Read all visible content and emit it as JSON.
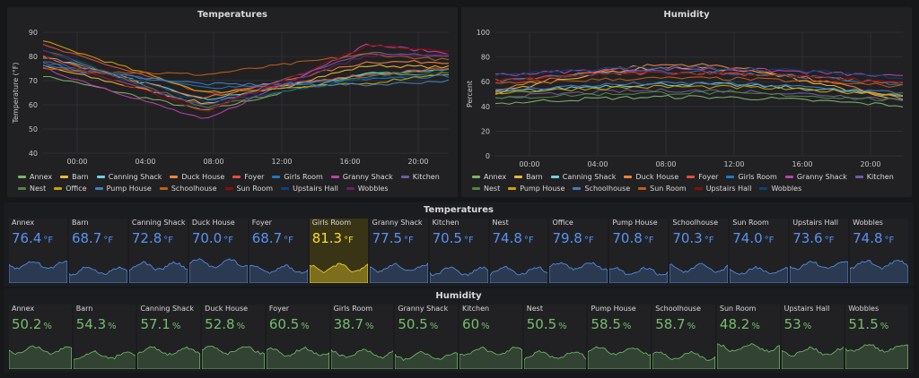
{
  "temp_chart": {
    "title": "Temperatures",
    "ylabel": "Temperature (°F)",
    "yticks": [
      "40",
      "50",
      "60",
      "70",
      "80",
      "90"
    ],
    "xticks": [
      "00:00",
      "04:00",
      "08:00",
      "12:00",
      "16:00",
      "20:00"
    ]
  },
  "hum_chart": {
    "title": "Humidity",
    "ylabel": "Percent",
    "yticks": [
      "0",
      "20",
      "40",
      "60",
      "80",
      "100"
    ],
    "xticks": [
      "00:00",
      "04:00",
      "08:00",
      "12:00",
      "16:00",
      "20:00"
    ]
  },
  "temp_legend": [
    {
      "name": "Annex",
      "color": "#7eb26d"
    },
    {
      "name": "Barn",
      "color": "#eab839"
    },
    {
      "name": "Canning Shack",
      "color": "#6ed0e0"
    },
    {
      "name": "Duck House",
      "color": "#ef843c"
    },
    {
      "name": "Foyer",
      "color": "#e24d42"
    },
    {
      "name": "Girls Room",
      "color": "#1f78c1"
    },
    {
      "name": "Granny Shack",
      "color": "#ba43a9"
    },
    {
      "name": "Kitchen",
      "color": "#705da0"
    },
    {
      "name": "Nest",
      "color": "#508642"
    },
    {
      "name": "Office",
      "color": "#cca300"
    },
    {
      "name": "Pump House",
      "color": "#447ebc"
    },
    {
      "name": "Schoolhouse",
      "color": "#c15c17"
    },
    {
      "name": "Sun Room",
      "color": "#890f02"
    },
    {
      "name": "Upstairs Hall",
      "color": "#0a437c"
    },
    {
      "name": "Wobbles",
      "color": "#6d1f62"
    }
  ],
  "hum_legend": [
    {
      "name": "Annex",
      "color": "#7eb26d"
    },
    {
      "name": "Barn",
      "color": "#eab839"
    },
    {
      "name": "Canning Shack",
      "color": "#6ed0e0"
    },
    {
      "name": "Duck House",
      "color": "#ef843c"
    },
    {
      "name": "Foyer",
      "color": "#e24d42"
    },
    {
      "name": "Girls Room",
      "color": "#1f78c1"
    },
    {
      "name": "Granny Shack",
      "color": "#ba43a9"
    },
    {
      "name": "Kitchen",
      "color": "#705da0"
    },
    {
      "name": "Nest",
      "color": "#508642"
    },
    {
      "name": "Pump House",
      "color": "#cca300"
    },
    {
      "name": "Schoolhouse",
      "color": "#447ebc"
    },
    {
      "name": "Sun Room",
      "color": "#c15c17"
    },
    {
      "name": "Upstairs Hall",
      "color": "#890f02"
    },
    {
      "name": "Wobbles",
      "color": "#0a437c"
    }
  ],
  "temp_stats": {
    "title": "Temperatures",
    "unit": "°F",
    "items": [
      {
        "name": "Annex",
        "value": "76.4"
      },
      {
        "name": "Barn",
        "value": "68.7"
      },
      {
        "name": "Canning Shack",
        "value": "72.8"
      },
      {
        "name": "Duck House",
        "value": "70.0"
      },
      {
        "name": "Foyer",
        "value": "68.7"
      },
      {
        "name": "Girls Room",
        "value": "81.3",
        "highlight": true
      },
      {
        "name": "Granny Shack",
        "value": "77.5"
      },
      {
        "name": "Kitchen",
        "value": "70.5"
      },
      {
        "name": "Nest",
        "value": "74.8"
      },
      {
        "name": "Office",
        "value": "79.8"
      },
      {
        "name": "Pump House",
        "value": "70.8"
      },
      {
        "name": "Schoolhouse",
        "value": "70.3"
      },
      {
        "name": "Sun Room",
        "value": "74.0"
      },
      {
        "name": "Upstairs Hall",
        "value": "73.6"
      },
      {
        "name": "Wobbles",
        "value": "74.8"
      }
    ]
  },
  "hum_stats": {
    "title": "Humidity",
    "unit": "%",
    "items": [
      {
        "name": "Annex",
        "value": "50.2"
      },
      {
        "name": "Barn",
        "value": "54.3"
      },
      {
        "name": "Canning Shack",
        "value": "57.1"
      },
      {
        "name": "Duck House",
        "value": "52.8"
      },
      {
        "name": "Foyer",
        "value": "60.5"
      },
      {
        "name": "Girls Room",
        "value": "38.7"
      },
      {
        "name": "Granny Shack",
        "value": "50.5"
      },
      {
        "name": "Kitchen",
        "value": "60"
      },
      {
        "name": "Nest",
        "value": "50.5"
      },
      {
        "name": "Pump House",
        "value": "58.5"
      },
      {
        "name": "Schoolhouse",
        "value": "58.7"
      },
      {
        "name": "Sun Room",
        "value": "48.2"
      },
      {
        "name": "Upstairs Hall",
        "value": "53"
      },
      {
        "name": "Wobbles",
        "value": "51.5"
      }
    ]
  },
  "colors": {
    "temp_value": "#5794f2",
    "temp_highlight": "#fade2a",
    "hum_value": "#73bf69"
  }
}
